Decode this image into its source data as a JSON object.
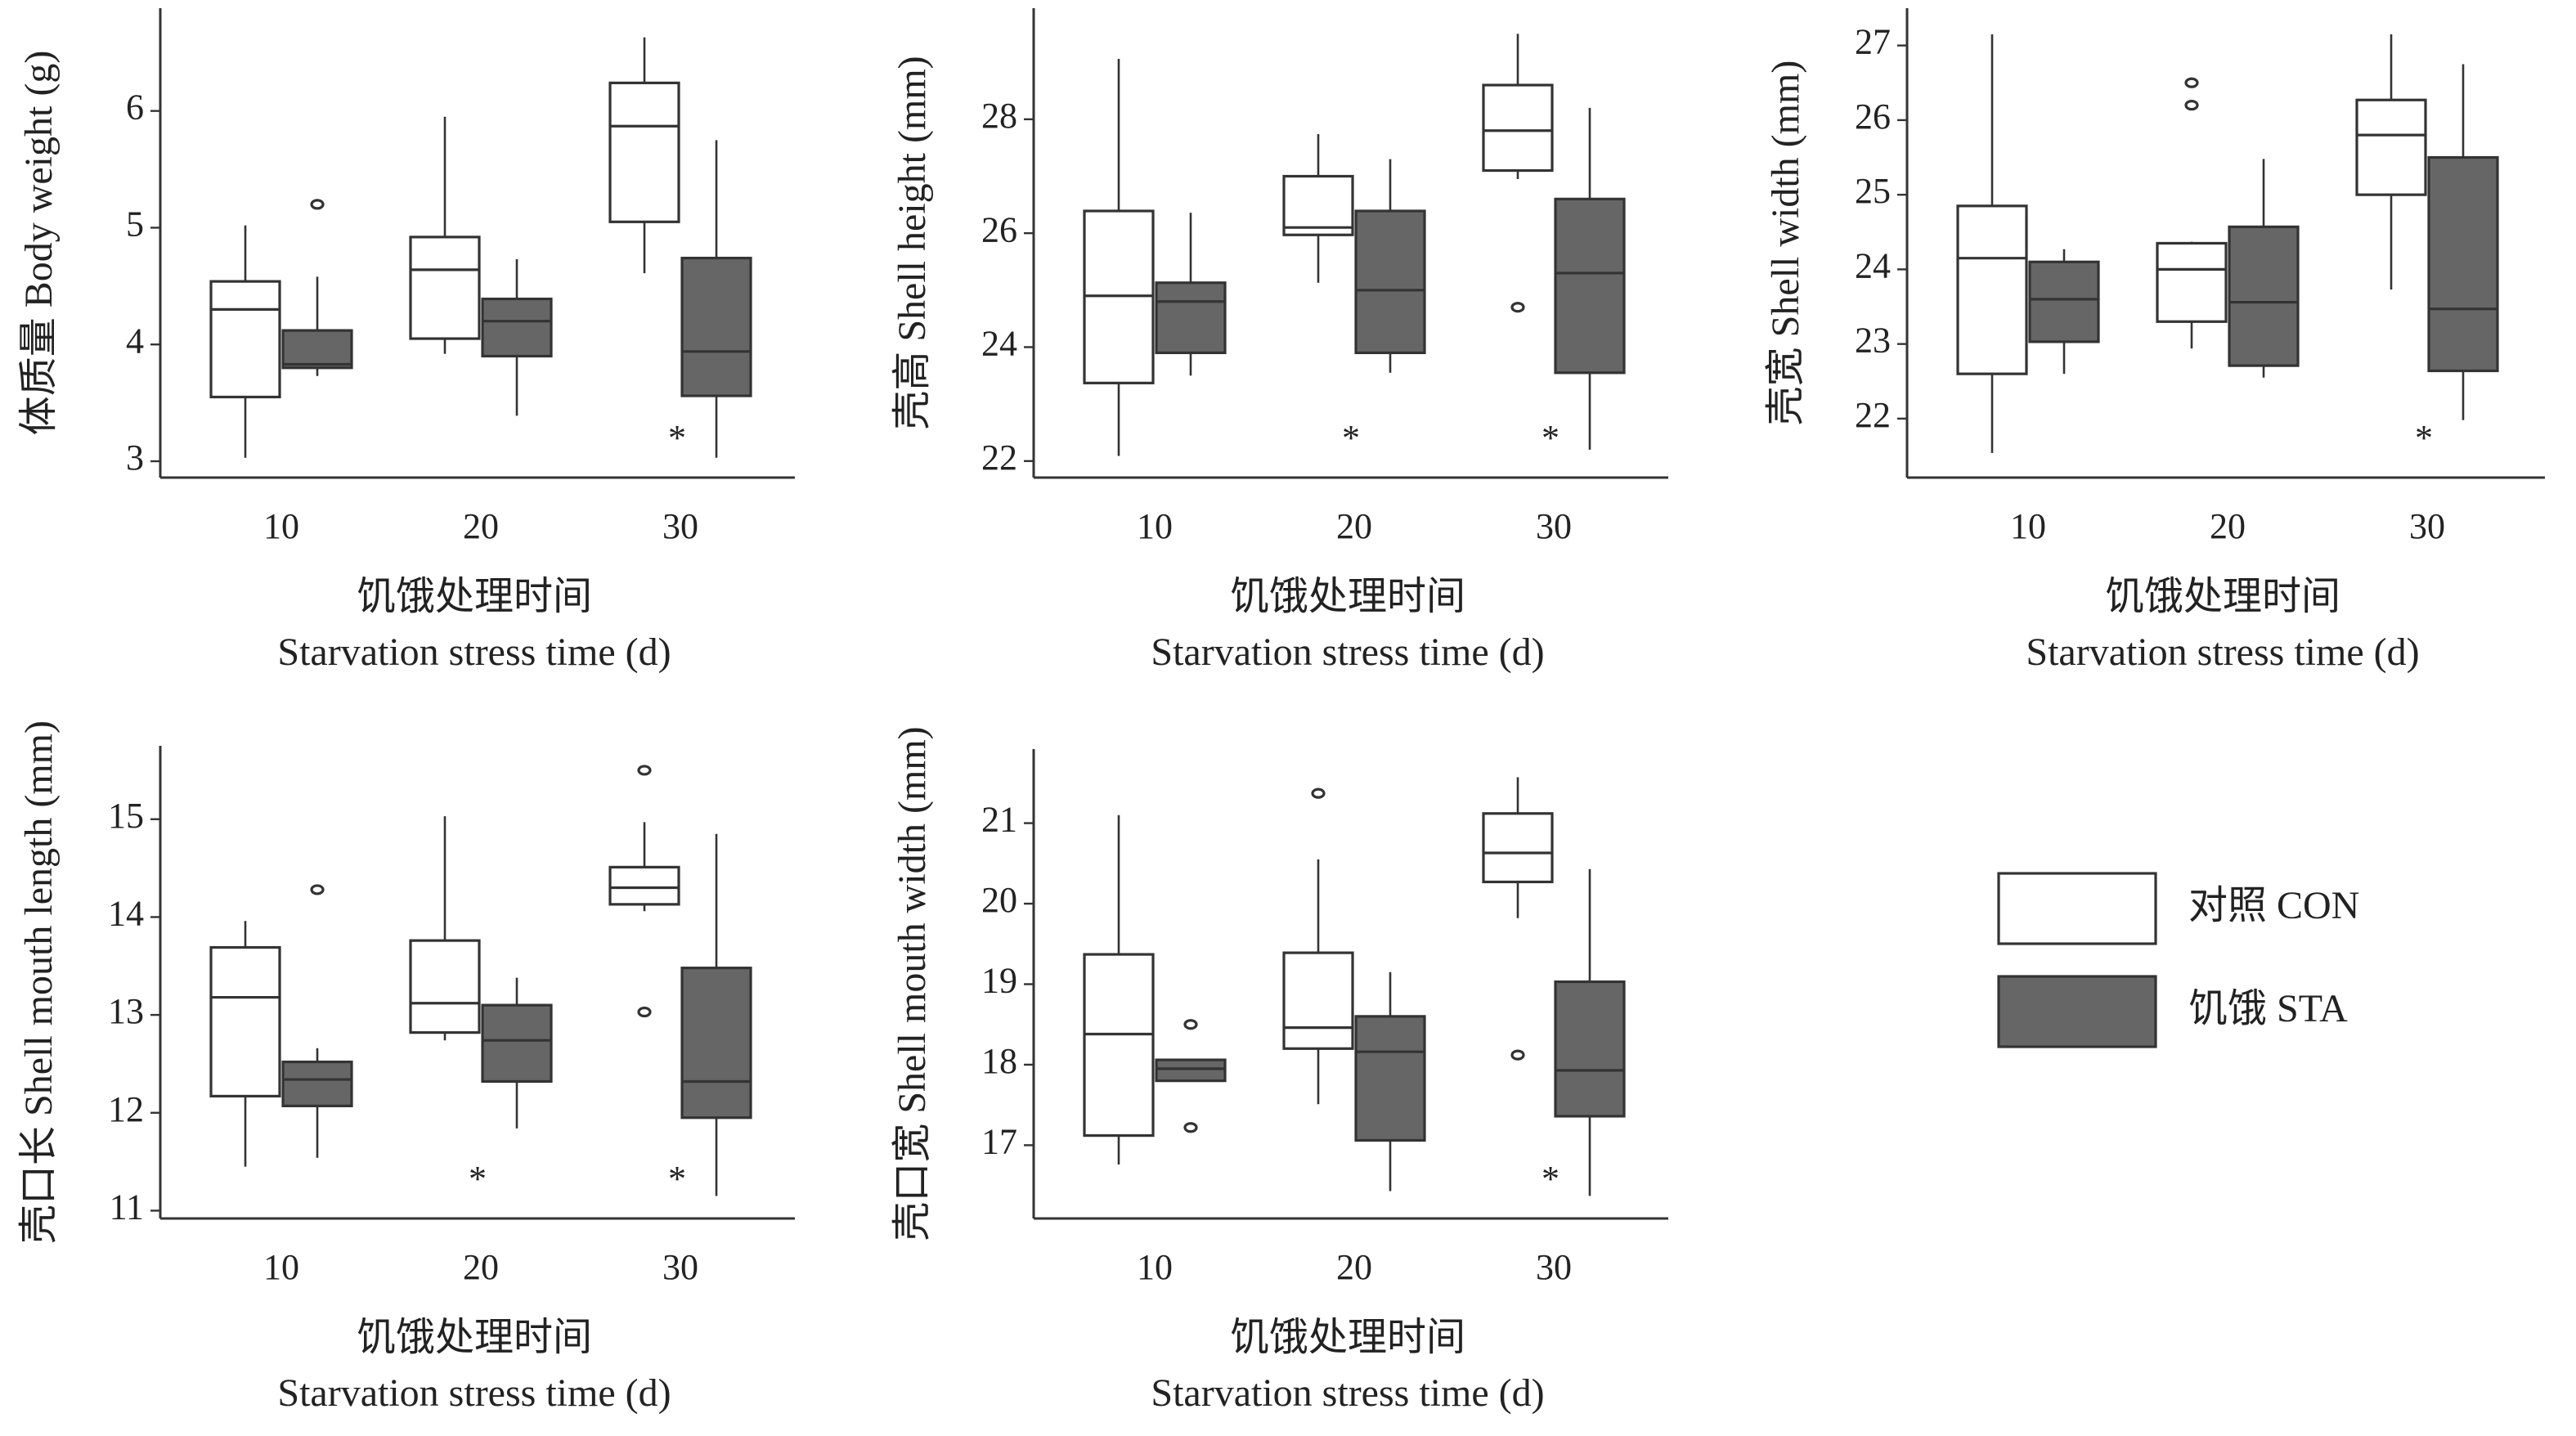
{
  "chart_data": [
    {
      "type": "box",
      "ylabel": "体质量 Body weight (g)",
      "xlabel": [
        "饥饿处理时间",
        "Starvation stress time (d)"
      ],
      "categories": [
        "10",
        "20",
        "30"
      ],
      "ylim": [
        2.86,
        6.88
      ],
      "yticks": [
        3,
        4,
        5,
        6
      ],
      "series": [
        {
          "color": "#ffffff",
          "min": [
            3.03,
            3.92,
            4.61
          ],
          "q1": [
            3.55,
            4.05,
            5.05
          ],
          "median": [
            4.3,
            4.64,
            5.87
          ],
          "q3": [
            4.54,
            4.92,
            6.24
          ],
          "max": [
            5.02,
            5.95,
            6.63
          ],
          "outliers": [
            [],
            [],
            []
          ]
        },
        {
          "color": "#666666",
          "min": [
            3.73,
            3.39,
            3.03
          ],
          "q1": [
            3.8,
            3.9,
            3.56
          ],
          "median": [
            3.83,
            4.2,
            3.94
          ],
          "q3": [
            4.12,
            4.39,
            4.74
          ],
          "max": [
            4.58,
            4.73,
            5.75
          ],
          "outliers": [
            [
              5.2
            ],
            [],
            []
          ]
        }
      ],
      "annotations": [
        {
          "x": "30",
          "text": "*"
        }
      ]
    },
    {
      "type": "box",
      "ylabel": "壳高 Shell height (mm)",
      "xlabel": [
        "饥饿处理时间",
        "Starvation stress time (d)"
      ],
      "categories": [
        "10",
        "20",
        "30"
      ],
      "ylim": [
        21.71,
        29.95
      ],
      "yticks": [
        22,
        24,
        26,
        28
      ],
      "series": [
        {
          "color": "#ffffff",
          "min": [
            22.09,
            25.13,
            26.95
          ],
          "q1": [
            23.37,
            25.97,
            27.1
          ],
          "median": [
            24.9,
            26.1,
            27.8
          ],
          "q3": [
            26.39,
            27.0,
            28.6
          ],
          "max": [
            29.06,
            27.74,
            29.5
          ],
          "outliers": [
            [],
            [],
            [
              24.7
            ]
          ]
        },
        {
          "color": "#666666",
          "min": [
            23.5,
            23.55,
            22.2
          ],
          "q1": [
            23.9,
            23.9,
            23.55
          ],
          "median": [
            24.8,
            25.0,
            25.3
          ],
          "q3": [
            25.13,
            26.39,
            26.6
          ],
          "max": [
            26.36,
            27.3,
            28.2
          ],
          "outliers": [
            [],
            [],
            []
          ]
        }
      ],
      "annotations": [
        {
          "x": "20",
          "text": "*"
        },
        {
          "x": "30",
          "text": "*"
        }
      ]
    },
    {
      "type": "box",
      "ylabel": "壳宽 Shell width (mm)",
      "xlabel": [
        "饥饿处理时间",
        "Starvation stress time (d)"
      ],
      "categories": [
        "10",
        "20",
        "30"
      ],
      "ylim": [
        21.21,
        27.5
      ],
      "yticks": [
        22,
        23,
        24,
        25,
        26,
        27
      ],
      "series": [
        {
          "color": "#ffffff",
          "min": [
            21.54,
            22.94,
            23.73
          ],
          "q1": [
            22.6,
            23.3,
            25.0
          ],
          "median": [
            24.15,
            24.0,
            25.8
          ],
          "q3": [
            24.85,
            24.35,
            26.27
          ],
          "max": [
            27.15,
            24.37,
            27.15
          ],
          "outliers": [
            [],
            [
              26.5,
              26.2
            ],
            []
          ]
        },
        {
          "color": "#666666",
          "min": [
            22.6,
            22.55,
            21.98
          ],
          "q1": [
            23.03,
            22.71,
            22.64
          ],
          "median": [
            23.6,
            23.56,
            23.47
          ],
          "q3": [
            24.1,
            24.57,
            25.5
          ],
          "max": [
            24.27,
            25.48,
            26.75
          ],
          "outliers": [
            [],
            [],
            []
          ]
        }
      ],
      "annotations": [
        {
          "x": "30",
          "text": "*"
        }
      ]
    },
    {
      "type": "box",
      "ylabel": "壳口长 Shell mouth length (mm)",
      "xlabel": [
        "饥饿处理时间",
        "Starvation stress time (d)"
      ],
      "categories": [
        "10",
        "20",
        "30"
      ],
      "ylim": [
        10.92,
        15.75
      ],
      "yticks": [
        11,
        12,
        13,
        14,
        15
      ],
      "series": [
        {
          "color": "#ffffff",
          "min": [
            11.45,
            12.74,
            14.06
          ],
          "q1": [
            12.17,
            12.82,
            14.13
          ],
          "median": [
            13.18,
            13.12,
            14.3
          ],
          "q3": [
            13.69,
            13.76,
            14.51
          ],
          "max": [
            13.96,
            15.03,
            14.97
          ],
          "outliers": [
            [],
            [],
            [
              15.5,
              13.03
            ]
          ]
        },
        {
          "color": "#666666",
          "min": [
            11.54,
            11.84,
            11.15
          ],
          "q1": [
            12.07,
            12.32,
            11.95
          ],
          "median": [
            12.34,
            12.74,
            12.32
          ],
          "q3": [
            12.52,
            13.1,
            13.48
          ],
          "max": [
            12.66,
            13.38,
            14.85
          ],
          "outliers": [
            [
              14.28
            ],
            [],
            []
          ]
        }
      ],
      "annotations": [
        {
          "x": "20",
          "text": "*"
        },
        {
          "x": "30",
          "text": "*"
        }
      ]
    },
    {
      "type": "box",
      "ylabel": "壳口宽 Shell mouth width (mm)",
      "xlabel": [
        "饥饿处理时间",
        "Starvation stress time (d)"
      ],
      "categories": [
        "10",
        "20",
        "30"
      ],
      "ylim": [
        16.09,
        21.92
      ],
      "yticks": [
        17,
        18,
        19,
        20,
        21
      ],
      "series": [
        {
          "color": "#ffffff",
          "min": [
            16.76,
            17.51,
            19.82
          ],
          "q1": [
            17.12,
            18.2,
            20.27
          ],
          "median": [
            18.38,
            18.46,
            20.63
          ],
          "q3": [
            19.37,
            19.39,
            21.12
          ],
          "max": [
            21.1,
            20.55,
            21.57
          ],
          "outliers": [
            [],
            [
              21.37
            ],
            [
              18.12
            ]
          ]
        },
        {
          "color": "#666666",
          "min": [
            17.8,
            16.43,
            16.37
          ],
          "q1": [
            17.8,
            17.06,
            17.36
          ],
          "median": [
            17.95,
            18.16,
            17.93
          ],
          "q3": [
            18.06,
            18.6,
            19.03
          ],
          "max": [
            18.06,
            19.15,
            20.43
          ],
          "outliers": [
            [
              18.5,
              17.22
            ],
            [],
            []
          ]
        }
      ],
      "annotations": [
        {
          "x": "30",
          "text": "*"
        }
      ]
    }
  ],
  "legend": [
    {
      "name": "对照 CON",
      "color": "#ffffff"
    },
    {
      "name": "饥饿 STA",
      "color": "#666666"
    }
  ]
}
